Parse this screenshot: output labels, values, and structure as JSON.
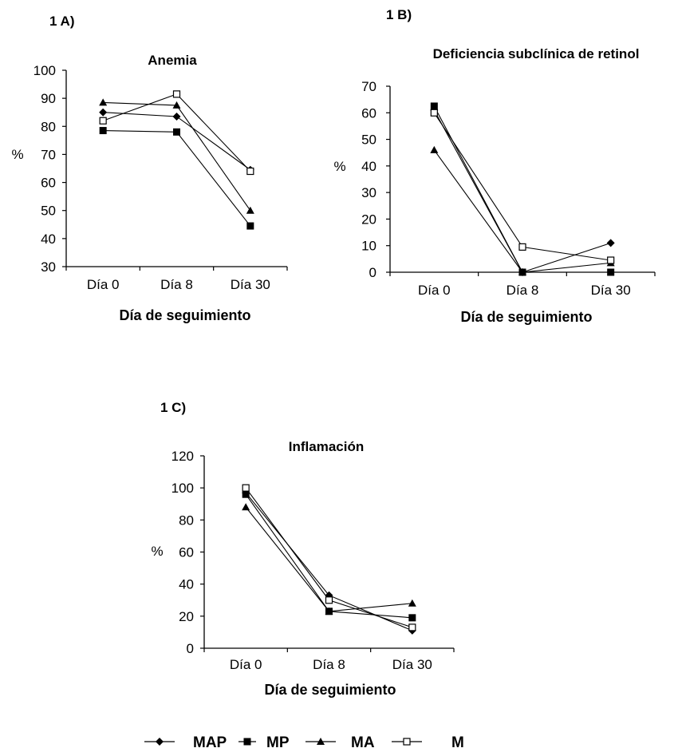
{
  "legend": [
    {
      "name": "MAP",
      "marker": "diamond"
    },
    {
      "name": "MP",
      "marker": "square"
    },
    {
      "name": "MA",
      "marker": "triangle"
    },
    {
      "name": "M",
      "marker": "open-square"
    }
  ],
  "chart_data": [
    {
      "panel": "1 A)",
      "type": "line",
      "title": "Anemia",
      "xlabel": "Día de seguimiento",
      "ylabel": "%",
      "categories": [
        "Día 0",
        "Día 8",
        "Día 30"
      ],
      "ylim": [
        30,
        100
      ],
      "yticks": [
        30,
        40,
        50,
        60,
        70,
        80,
        90,
        100
      ],
      "grid": false,
      "series": [
        {
          "name": "MAP",
          "marker": "diamond",
          "values": [
            85,
            83.5,
            64.5
          ]
        },
        {
          "name": "MP",
          "marker": "square",
          "values": [
            78.5,
            78,
            44.5
          ]
        },
        {
          "name": "MA",
          "marker": "triangle",
          "values": [
            88.5,
            87.5,
            50
          ]
        },
        {
          "name": "M",
          "marker": "open-square",
          "values": [
            82,
            91.5,
            64
          ]
        }
      ]
    },
    {
      "panel": "1 B)",
      "type": "line",
      "title": "Deficiencia subclínica de retinol",
      "xlabel": "Día de seguimiento",
      "ylabel": "%",
      "categories": [
        "Día 0",
        "Día 8",
        "Día 30"
      ],
      "ylim": [
        0,
        70
      ],
      "yticks": [
        0,
        10,
        20,
        30,
        40,
        50,
        60,
        70
      ],
      "grid": false,
      "series": [
        {
          "name": "MAP",
          "marker": "diamond",
          "values": [
            61,
            0,
            11
          ]
        },
        {
          "name": "MP",
          "marker": "square",
          "values": [
            62.5,
            0,
            0
          ]
        },
        {
          "name": "MA",
          "marker": "triangle",
          "values": [
            46,
            0,
            3.5
          ]
        },
        {
          "name": "M",
          "marker": "open-square",
          "values": [
            60,
            9.5,
            4.5
          ]
        }
      ]
    },
    {
      "panel": "1 C)",
      "type": "line",
      "title": "Inflamación",
      "xlabel": "Día de seguimiento",
      "ylabel": "%",
      "categories": [
        "Día 0",
        "Día 8",
        "Día 30"
      ],
      "ylim": [
        0,
        120
      ],
      "yticks": [
        0,
        20,
        40,
        60,
        80,
        100,
        120
      ],
      "grid": false,
      "series": [
        {
          "name": "MAP",
          "marker": "diamond",
          "values": [
            97,
            33,
            11
          ]
        },
        {
          "name": "MP",
          "marker": "square",
          "values": [
            96,
            23,
            19
          ]
        },
        {
          "name": "MA",
          "marker": "triangle",
          "values": [
            88,
            23,
            28
          ]
        },
        {
          "name": "M",
          "marker": "open-square",
          "values": [
            100,
            30,
            13
          ]
        }
      ]
    }
  ]
}
